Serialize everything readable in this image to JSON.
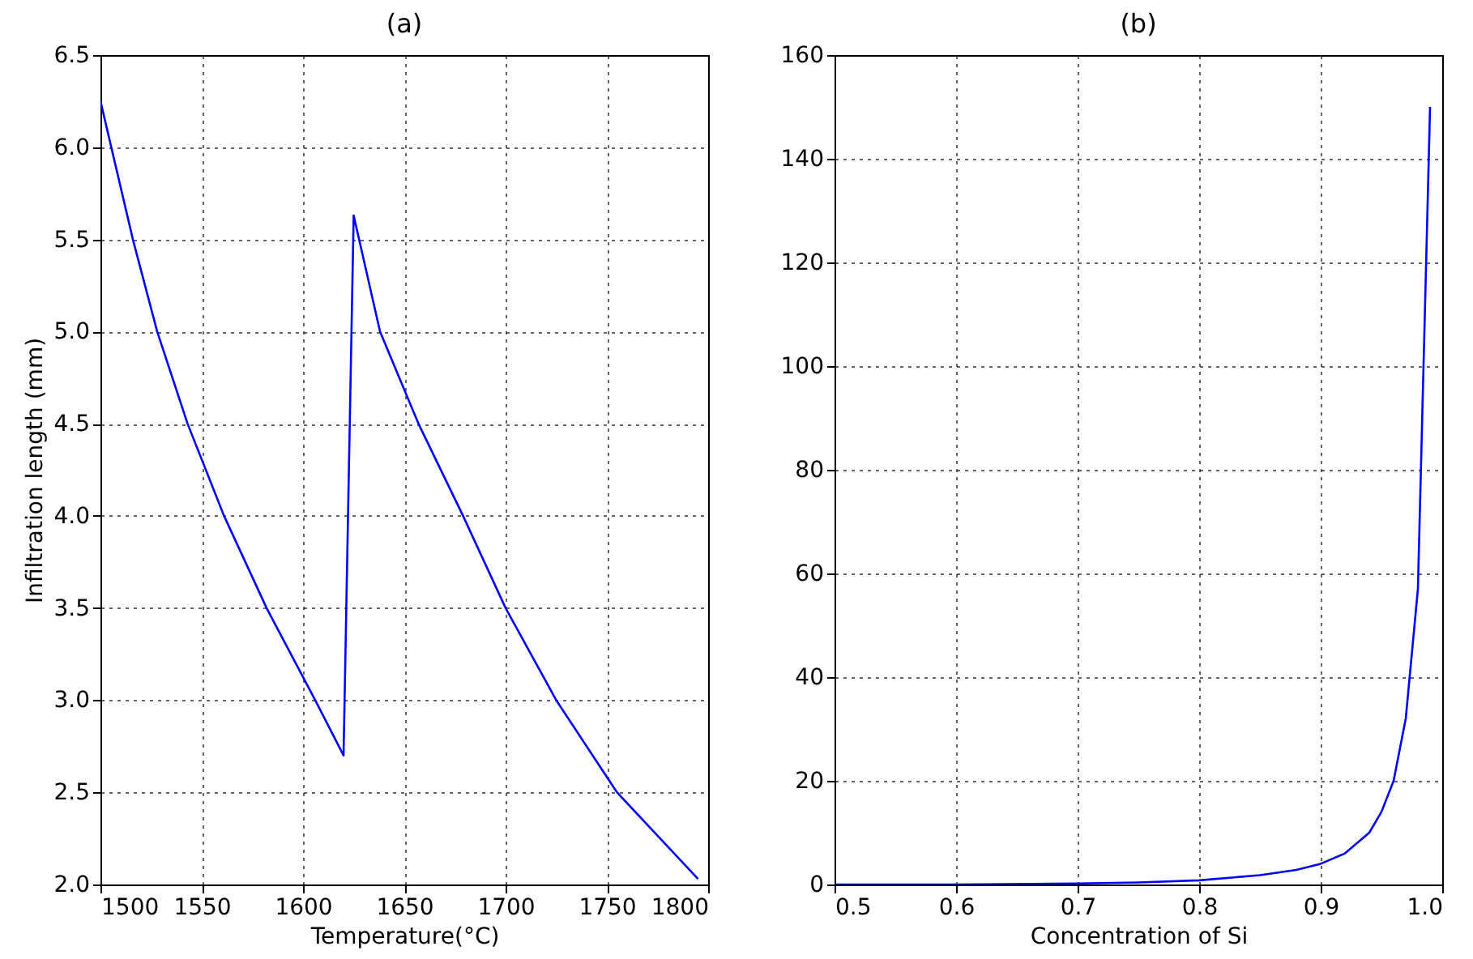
{
  "chart_data": [
    {
      "type": "line",
      "title": "(a)",
      "xlabel": "Temperature(°C)",
      "ylabel": "Infiltration length (mm)",
      "x": [
        1500,
        1516,
        1528,
        1543,
        1561,
        1582,
        1606,
        1620,
        1625,
        1638,
        1657,
        1679,
        1700,
        1725,
        1755,
        1795
      ],
      "values": [
        6.25,
        5.5,
        5.0,
        4.5,
        4.0,
        3.5,
        3.0,
        2.7,
        5.63,
        5.0,
        4.5,
        4.0,
        3.5,
        3.0,
        2.5,
        2.03
      ],
      "color": "#0000ff",
      "xlim": [
        1500,
        1800
      ],
      "xticks": [
        1500,
        1550,
        1600,
        1650,
        1700,
        1750,
        1800
      ],
      "ylim": [
        2.0,
        6.5
      ],
      "yticks": [
        {
          "value": 2,
          "label": "2.0"
        },
        2.5,
        {
          "value": 3,
          "label": "3.0"
        },
        3.5,
        {
          "value": 4,
          "label": "4.0"
        },
        4.5,
        {
          "value": 5,
          "label": "5.0"
        },
        5.5,
        {
          "value": 6,
          "label": "6.0"
        },
        6.5
      ],
      "grid": true,
      "line_style": "solid",
      "marker": "none"
    },
    {
      "type": "line",
      "title": "(b)",
      "xlabel": "Concentration of Si",
      "x": [
        0.5,
        0.6,
        0.7,
        0.75,
        0.8,
        0.85,
        0.88,
        0.9,
        0.92,
        0.93,
        0.94,
        0.95,
        0.96,
        0.97,
        0.98,
        0.99
      ],
      "values": [
        0,
        0,
        0.2,
        0.4,
        0.8,
        1.8,
        2.8,
        4,
        6,
        8,
        10,
        14,
        20,
        32,
        57,
        150
      ],
      "color": "#0000ff",
      "xlim": [
        0.5,
        1.0
      ],
      "xticks": [
        0.5,
        0.6,
        0.7,
        0.8,
        0.9,
        {
          "value": 1,
          "label": "1.0"
        }
      ],
      "ylim": [
        0,
        160
      ],
      "yticks": [
        0,
        20,
        40,
        60,
        80,
        100,
        120,
        140,
        160
      ],
      "grid": true,
      "line_style": "solid",
      "marker": "none"
    }
  ]
}
